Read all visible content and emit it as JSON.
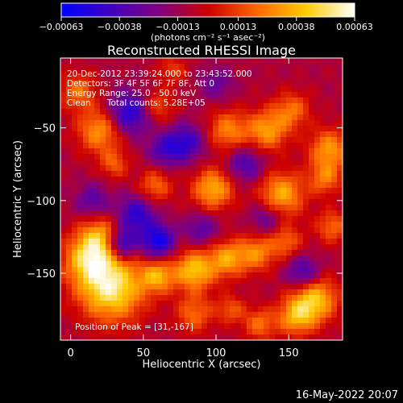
{
  "chart_data": {
    "type": "heatmap",
    "title": "Reconstructed RHESSI Image",
    "xlabel": "Heliocentric X (arcsec)",
    "ylabel": "Heliocentric Y (arcsec)",
    "xlim": [
      -7,
      187
    ],
    "ylim": [
      -196,
      -2
    ],
    "x_ticks": [
      0,
      50,
      100,
      150
    ],
    "x_tick_labels": [
      "0",
      "50",
      "100",
      "150"
    ],
    "y_ticks": [
      -50,
      -100,
      -150
    ],
    "y_tick_labels": [
      "−50",
      "−100",
      "−150"
    ],
    "colorbar": {
      "range": [
        -0.00063,
        0.00063
      ],
      "ticks": [
        -0.00063,
        -0.00038,
        -0.00013,
        0.00013,
        0.00038,
        0.00063
      ],
      "tick_labels": [
        "−0.00063",
        "−0.00038",
        "−0.00013",
        "0.00013",
        "0.00038",
        "0.00063"
      ],
      "unit_label": "(photons cm⁻² s⁻¹ asec⁻²)",
      "colormap": [
        "#0000ff",
        "#4000c0",
        "#800080",
        "#cc0000",
        "#ff6600",
        "#ffcc00",
        "#ffffff"
      ]
    },
    "annotations": [
      "20-Dec-2012 23:39:24.000 to 23:43:52.000",
      "Detectors: 3F 4F 5F 6F 7F 8F, Att 0",
      "Energy Range: 25.0 - 50.0 keV",
      "Clean      Total counts: 5.28E+05"
    ],
    "peak_label": "Position of Peak = [31,-167]",
    "blobs": [
      {
        "x": 28,
        "y": -160,
        "v": 0.00063,
        "r": 16
      },
      {
        "x": 12,
        "y": -140,
        "v": 0.00045,
        "r": 12
      },
      {
        "x": 20,
        "y": -125,
        "v": 0.00035,
        "r": 10
      },
      {
        "x": 60,
        "y": -152,
        "v": 0.0004,
        "r": 8
      },
      {
        "x": 85,
        "y": -148,
        "v": 0.0005,
        "r": 10
      },
      {
        "x": 108,
        "y": -140,
        "v": 0.0004,
        "r": 9
      },
      {
        "x": 128,
        "y": -136,
        "v": 0.00035,
        "r": 9
      },
      {
        "x": 148,
        "y": -128,
        "v": 0.00028,
        "r": 8
      },
      {
        "x": 98,
        "y": -92,
        "v": 0.00045,
        "r": 10
      },
      {
        "x": 145,
        "y": -96,
        "v": 0.00045,
        "r": 11
      },
      {
        "x": 108,
        "y": -52,
        "v": 0.00035,
        "r": 10
      },
      {
        "x": 135,
        "y": -52,
        "v": 0.0004,
        "r": 10
      },
      {
        "x": 152,
        "y": -38,
        "v": 0.0003,
        "r": 9
      },
      {
        "x": 178,
        "y": -65,
        "v": 0.0004,
        "r": 10
      },
      {
        "x": 175,
        "y": -85,
        "v": 0.0003,
        "r": 8
      },
      {
        "x": 20,
        "y": -52,
        "v": 0.0004,
        "r": 11
      },
      {
        "x": 5,
        "y": -25,
        "v": 0.0003,
        "r": 9
      },
      {
        "x": 30,
        "y": -75,
        "v": 0.00025,
        "r": 7
      },
      {
        "x": 58,
        "y": -90,
        "v": 0.0003,
        "r": 8
      },
      {
        "x": 60,
        "y": -35,
        "v": 0.00025,
        "r": 8
      },
      {
        "x": 168,
        "y": -168,
        "v": 0.0005,
        "r": 11
      },
      {
        "x": 155,
        "y": -180,
        "v": 0.0004,
        "r": 9
      },
      {
        "x": 130,
        "y": -185,
        "v": 0.0003,
        "r": 8
      },
      {
        "x": 85,
        "y": -178,
        "v": 0.0003,
        "r": 9
      },
      {
        "x": 110,
        "y": -175,
        "v": 0.00025,
        "r": 7
      },
      {
        "x": 180,
        "y": -118,
        "v": 0.0003,
        "r": 8
      },
      {
        "x": 70,
        "y": -10,
        "v": 0.0002,
        "r": 7
      },
      {
        "x": 45,
        "y": -110,
        "v": -0.0004,
        "r": 9
      },
      {
        "x": 60,
        "y": -128,
        "v": -0.0005,
        "r": 8
      },
      {
        "x": 35,
        "y": -130,
        "v": -0.0005,
        "r": 7
      },
      {
        "x": 40,
        "y": -40,
        "v": -0.00045,
        "r": 10
      },
      {
        "x": 80,
        "y": -60,
        "v": -0.00035,
        "r": 9
      },
      {
        "x": 65,
        "y": -65,
        "v": -0.0003,
        "r": 8
      },
      {
        "x": 120,
        "y": -75,
        "v": -0.0003,
        "r": 9
      },
      {
        "x": 160,
        "y": -150,
        "v": -0.00035,
        "r": 8
      },
      {
        "x": 90,
        "y": -120,
        "v": -0.00025,
        "r": 8
      },
      {
        "x": 15,
        "y": -100,
        "v": -0.00025,
        "r": 8
      },
      {
        "x": 135,
        "y": -112,
        "v": -0.00025,
        "r": 8
      },
      {
        "x": 100,
        "y": -20,
        "v": -0.0002,
        "r": 8
      }
    ]
  },
  "footer": {
    "timestamp": "16-May-2022 20:07"
  }
}
